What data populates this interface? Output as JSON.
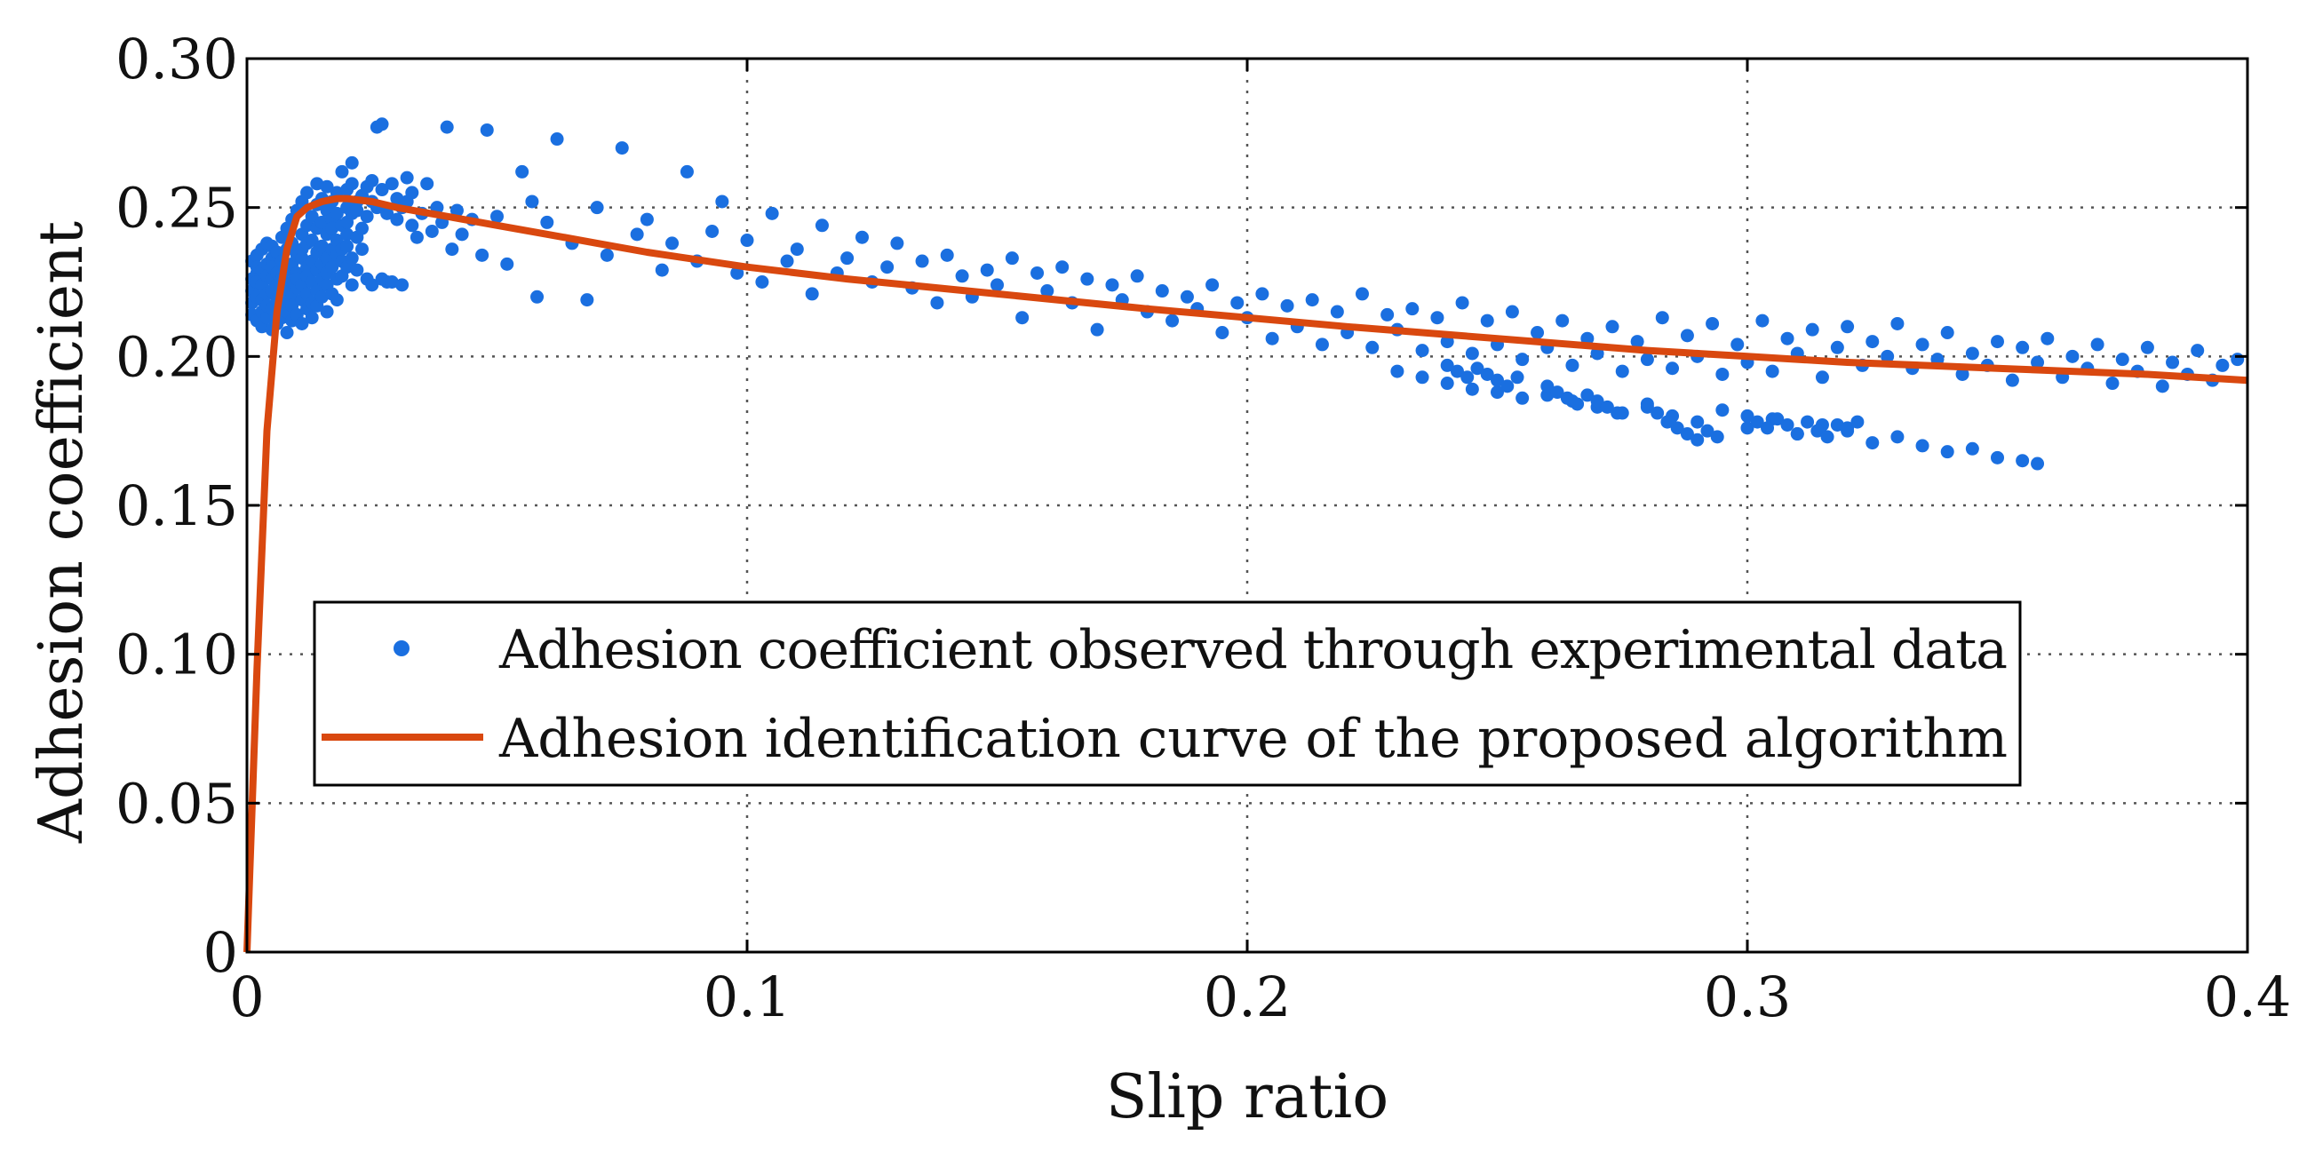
{
  "colors": {
    "scatter": "#1a6fe0",
    "curve": "#d9480f",
    "axis": "#000000",
    "grid": "#555555",
    "background": "#ffffff"
  },
  "chart_data": {
    "type": "scatter",
    "title": "",
    "xlabel": "Slip ratio",
    "ylabel": "Adhesion coefficient",
    "xlim": [
      0,
      0.4
    ],
    "ylim": [
      0,
      0.3
    ],
    "grid": true,
    "legend_position": "center-left",
    "x_ticks": [
      0,
      0.1,
      0.2,
      0.3,
      0.4
    ],
    "x_tick_labels": [
      "0",
      "0.1",
      "0.2",
      "0.3",
      "0.4"
    ],
    "y_ticks": [
      0,
      0.05,
      0.1,
      0.15,
      0.2,
      0.25,
      0.3
    ],
    "y_tick_labels": [
      "0",
      "0.05",
      "0.10",
      "0.15",
      "0.20",
      "0.25",
      "0.30"
    ],
    "series": [
      {
        "name": "Adhesion coefficient observed through experimental data",
        "kind": "scatter",
        "x": [
          0.001,
          0.001,
          0.001,
          0.001,
          0.001,
          0.002,
          0.002,
          0.002,
          0.002,
          0.002,
          0.002,
          0.003,
          0.003,
          0.003,
          0.003,
          0.003,
          0.003,
          0.004,
          0.004,
          0.004,
          0.004,
          0.004,
          0.004,
          0.005,
          0.005,
          0.005,
          0.005,
          0.005,
          0.005,
          0.005,
          0.006,
          0.006,
          0.006,
          0.006,
          0.006,
          0.007,
          0.007,
          0.007,
          0.007,
          0.007,
          0.008,
          0.008,
          0.008,
          0.008,
          0.008,
          0.008,
          0.009,
          0.009,
          0.009,
          0.009,
          0.009,
          0.009,
          0.009,
          0.01,
          0.01,
          0.01,
          0.01,
          0.01,
          0.01,
          0.011,
          0.011,
          0.011,
          0.011,
          0.011,
          0.011,
          0.011,
          0.012,
          0.012,
          0.012,
          0.012,
          0.012,
          0.012,
          0.012,
          0.013,
          0.013,
          0.013,
          0.013,
          0.013,
          0.013,
          0.014,
          0.014,
          0.014,
          0.014,
          0.014,
          0.014,
          0.014,
          0.015,
          0.015,
          0.015,
          0.015,
          0.015,
          0.015,
          0.016,
          0.016,
          0.016,
          0.016,
          0.016,
          0.016,
          0.016,
          0.017,
          0.017,
          0.017,
          0.017,
          0.017,
          0.017,
          0.018,
          0.018,
          0.018,
          0.018,
          0.018,
          0.018,
          0.019,
          0.019,
          0.019,
          0.019,
          0.019,
          0.02,
          0.02,
          0.02,
          0.02,
          0.02,
          0.02,
          0.021,
          0.021,
          0.021,
          0.021,
          0.021,
          0.022,
          0.022,
          0.022,
          0.022,
          0.023,
          0.023,
          0.023,
          0.024,
          0.024,
          0.024,
          0.025,
          0.025,
          0.025,
          0.026,
          0.026,
          0.027,
          0.027,
          0.027,
          0.028,
          0.028,
          0.029,
          0.029,
          0.03,
          0.03,
          0.031,
          0.031,
          0.032,
          0.032,
          0.033,
          0.033,
          0.034,
          0.035,
          0.036,
          0.037,
          0.038,
          0.039,
          0.04,
          0.041,
          0.042,
          0.043,
          0.045,
          0.047,
          0.048,
          0.05,
          0.052,
          0.055,
          0.057,
          0.058,
          0.06,
          0.062,
          0.065,
          0.068,
          0.07,
          0.072,
          0.075,
          0.078,
          0.08,
          0.083,
          0.085,
          0.088,
          0.09,
          0.093,
          0.095,
          0.098,
          0.1,
          0.103,
          0.105,
          0.108,
          0.11,
          0.113,
          0.115,
          0.118,
          0.12,
          0.123,
          0.125,
          0.128,
          0.13,
          0.133,
          0.135,
          0.138,
          0.14,
          0.143,
          0.145,
          0.148,
          0.15,
          0.153,
          0.155,
          0.158,
          0.16,
          0.163,
          0.165,
          0.168,
          0.17,
          0.173,
          0.175,
          0.178,
          0.18,
          0.183,
          0.185,
          0.188,
          0.19,
          0.193,
          0.195,
          0.198,
          0.2,
          0.203,
          0.205,
          0.208,
          0.21,
          0.213,
          0.215,
          0.218,
          0.22,
          0.223,
          0.225,
          0.228,
          0.23,
          0.233,
          0.235,
          0.238,
          0.24,
          0.243,
          0.245,
          0.248,
          0.25,
          0.253,
          0.255,
          0.258,
          0.26,
          0.263,
          0.265,
          0.268,
          0.27,
          0.273,
          0.275,
          0.278,
          0.28,
          0.283,
          0.285,
          0.288,
          0.29,
          0.293,
          0.295,
          0.298,
          0.3,
          0.303,
          0.305,
          0.308,
          0.31,
          0.313,
          0.315,
          0.318,
          0.32,
          0.323,
          0.325,
          0.328,
          0.33,
          0.333,
          0.335,
          0.338,
          0.34,
          0.343,
          0.345,
          0.348,
          0.35,
          0.353,
          0.355,
          0.358,
          0.36,
          0.363,
          0.365,
          0.368,
          0.37,
          0.373,
          0.375,
          0.378,
          0.38,
          0.383,
          0.385,
          0.388,
          0.39,
          0.393,
          0.395,
          0.398,
          0.23,
          0.235,
          0.24,
          0.245,
          0.25,
          0.255,
          0.26,
          0.265,
          0.27,
          0.275,
          0.28,
          0.285,
          0.29,
          0.295,
          0.3,
          0.305,
          0.31,
          0.315,
          0.32,
          0.325,
          0.33,
          0.335,
          0.34,
          0.345,
          0.35,
          0.355,
          0.358,
          0.3,
          0.302,
          0.304,
          0.306,
          0.308,
          0.31,
          0.312,
          0.314,
          0.316,
          0.318,
          0.32,
          0.322,
          0.28,
          0.282,
          0.284,
          0.286,
          0.288,
          0.29,
          0.292,
          0.294,
          0.26,
          0.262,
          0.264,
          0.266,
          0.268,
          0.27,
          0.272,
          0.274,
          0.24,
          0.242,
          0.244,
          0.246,
          0.248,
          0.25,
          0.252,
          0.254
        ],
        "y": [
          0.218,
          0.226,
          0.232,
          0.222,
          0.214,
          0.228,
          0.22,
          0.234,
          0.212,
          0.225,
          0.23,
          0.219,
          0.236,
          0.215,
          0.224,
          0.229,
          0.21,
          0.231,
          0.221,
          0.238,
          0.213,
          0.227,
          0.217,
          0.233,
          0.209,
          0.226,
          0.222,
          0.237,
          0.216,
          0.23,
          0.224,
          0.211,
          0.235,
          0.219,
          0.228,
          0.232,
          0.213,
          0.226,
          0.24,
          0.218,
          0.222,
          0.236,
          0.208,
          0.229,
          0.215,
          0.243,
          0.225,
          0.231,
          0.212,
          0.238,
          0.22,
          0.246,
          0.217,
          0.234,
          0.223,
          0.228,
          0.214,
          0.249,
          0.226,
          0.233,
          0.219,
          0.241,
          0.211,
          0.236,
          0.252,
          0.224,
          0.23,
          0.216,
          0.244,
          0.227,
          0.238,
          0.221,
          0.255,
          0.232,
          0.218,
          0.247,
          0.225,
          0.239,
          0.213,
          0.235,
          0.229,
          0.251,
          0.222,
          0.243,
          0.217,
          0.258,
          0.237,
          0.226,
          0.245,
          0.22,
          0.253,
          0.231,
          0.241,
          0.224,
          0.249,
          0.233,
          0.215,
          0.257,
          0.228,
          0.236,
          0.246,
          0.221,
          0.252,
          0.23,
          0.243,
          0.239,
          0.226,
          0.255,
          0.234,
          0.248,
          0.219,
          0.244,
          0.232,
          0.262,
          0.236,
          0.227,
          0.25,
          0.241,
          0.23,
          0.256,
          0.245,
          0.237,
          0.265,
          0.224,
          0.248,
          0.233,
          0.258,
          0.252,
          0.24,
          0.229,
          0.249,
          0.254,
          0.236,
          0.243,
          0.257,
          0.226,
          0.247,
          0.252,
          0.259,
          0.224,
          0.277,
          0.25,
          0.226,
          0.278,
          0.256,
          0.225,
          0.248,
          0.258,
          0.225,
          0.253,
          0.246,
          0.224,
          0.25,
          0.26,
          0.252,
          0.244,
          0.255,
          0.24,
          0.248,
          0.258,
          0.242,
          0.25,
          0.245,
          0.277,
          0.236,
          0.249,
          0.241,
          0.246,
          0.234,
          0.276,
          0.247,
          0.231,
          0.262,
          0.252,
          0.22,
          0.245,
          0.273,
          0.238,
          0.219,
          0.25,
          0.234,
          0.27,
          0.241,
          0.246,
          0.229,
          0.238,
          0.262,
          0.232,
          0.242,
          0.252,
          0.228,
          0.239,
          0.225,
          0.248,
          0.232,
          0.236,
          0.221,
          0.244,
          0.228,
          0.233,
          0.24,
          0.225,
          0.23,
          0.238,
          0.223,
          0.232,
          0.218,
          0.234,
          0.227,
          0.22,
          0.229,
          0.224,
          0.233,
          0.213,
          0.228,
          0.222,
          0.23,
          0.218,
          0.226,
          0.209,
          0.224,
          0.219,
          0.227,
          0.215,
          0.222,
          0.212,
          0.22,
          0.216,
          0.224,
          0.208,
          0.218,
          0.213,
          0.221,
          0.206,
          0.217,
          0.21,
          0.219,
          0.204,
          0.215,
          0.208,
          0.221,
          0.203,
          0.214,
          0.209,
          0.216,
          0.202,
          0.213,
          0.205,
          0.218,
          0.201,
          0.212,
          0.204,
          0.215,
          0.199,
          0.208,
          0.203,
          0.212,
          0.197,
          0.206,
          0.201,
          0.21,
          0.195,
          0.205,
          0.199,
          0.213,
          0.196,
          0.207,
          0.2,
          0.211,
          0.194,
          0.204,
          0.198,
          0.212,
          0.195,
          0.206,
          0.201,
          0.209,
          0.193,
          0.203,
          0.21,
          0.197,
          0.205,
          0.2,
          0.211,
          0.196,
          0.204,
          0.199,
          0.208,
          0.194,
          0.201,
          0.197,
          0.205,
          0.192,
          0.203,
          0.198,
          0.206,
          0.193,
          0.2,
          0.196,
          0.204,
          0.191,
          0.199,
          0.195,
          0.203,
          0.19,
          0.198,
          0.194,
          0.202,
          0.192,
          0.197,
          0.199,
          0.195,
          0.193,
          0.191,
          0.189,
          0.188,
          0.186,
          0.187,
          0.185,
          0.183,
          0.181,
          0.184,
          0.18,
          0.178,
          0.182,
          0.176,
          0.179,
          0.174,
          0.177,
          0.175,
          0.171,
          0.173,
          0.17,
          0.168,
          0.169,
          0.166,
          0.165,
          0.164,
          0.18,
          0.178,
          0.176,
          0.179,
          0.177,
          0.174,
          0.178,
          0.175,
          0.173,
          0.177,
          0.176,
          0.178,
          0.183,
          0.181,
          0.178,
          0.176,
          0.174,
          0.172,
          0.175,
          0.173,
          0.19,
          0.188,
          0.186,
          0.184,
          0.187,
          0.185,
          0.183,
          0.181,
          0.197,
          0.195,
          0.193,
          0.196,
          0.194,
          0.192,
          0.19,
          0.193
        ]
      },
      {
        "name": "Adhesion identification curve of the proposed algorithm",
        "kind": "line",
        "x": [
          0,
          0.002,
          0.004,
          0.006,
          0.008,
          0.01,
          0.012,
          0.015,
          0.018,
          0.02,
          0.025,
          0.03,
          0.04,
          0.05,
          0.06,
          0.07,
          0.08,
          0.1,
          0.12,
          0.15,
          0.18,
          0.2,
          0.22,
          0.25,
          0.28,
          0.3,
          0.32,
          0.35,
          0.38,
          0.4
        ],
        "y": [
          0,
          0.095,
          0.175,
          0.215,
          0.236,
          0.247,
          0.25,
          0.252,
          0.253,
          0.253,
          0.252,
          0.25,
          0.247,
          0.244,
          0.241,
          0.238,
          0.235,
          0.23,
          0.226,
          0.221,
          0.216,
          0.213,
          0.21,
          0.206,
          0.202,
          0.2,
          0.198,
          0.196,
          0.194,
          0.192
        ]
      }
    ]
  }
}
